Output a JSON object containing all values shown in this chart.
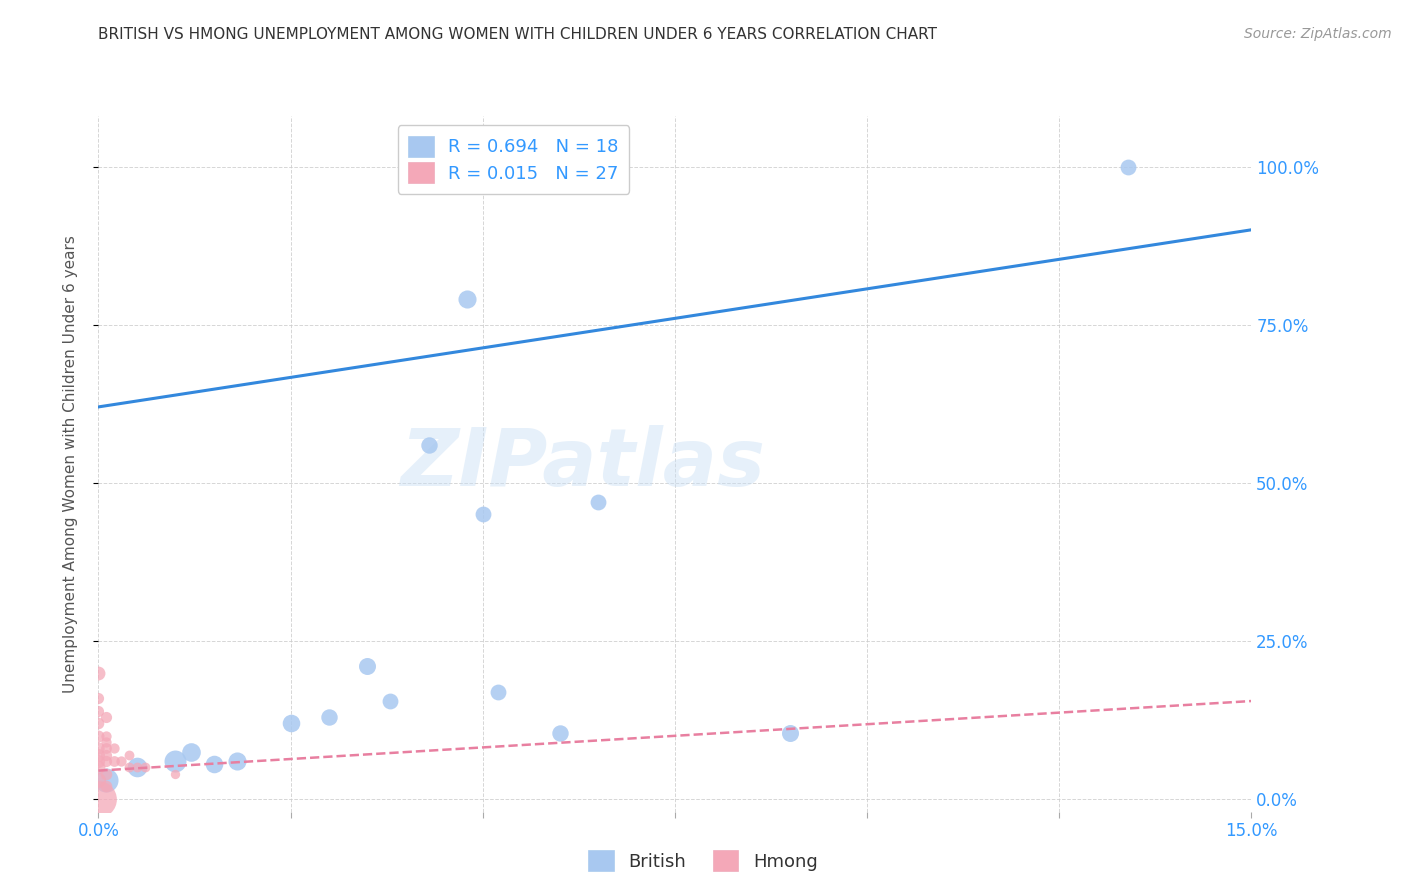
{
  "title": "BRITISH VS HMONG UNEMPLOYMENT AMONG WOMEN WITH CHILDREN UNDER 6 YEARS CORRELATION CHART",
  "source": "Source: ZipAtlas.com",
  "ylabel": "Unemployment Among Women with Children Under 6 years",
  "xlim": [
    0,
    0.15
  ],
  "ylim": [
    -0.02,
    1.08
  ],
  "xticks": [
    0.0,
    0.025,
    0.05,
    0.075,
    0.1,
    0.125,
    0.15
  ],
  "xticklabels": [
    "0.0%",
    "",
    "",
    "",
    "",
    "",
    "15.0%"
  ],
  "yticks": [
    0.0,
    0.25,
    0.5,
    0.75,
    1.0
  ],
  "yticklabels": [
    "0.0%",
    "25.0%",
    "50.0%",
    "75.0%",
    "100.0%"
  ],
  "legend_R_british": "R = 0.694",
  "legend_N_british": "N = 18",
  "legend_R_hmong": "R = 0.015",
  "legend_N_hmong": "N = 27",
  "british_color": "#a8c8f0",
  "hmong_color": "#f4a8b8",
  "trendline_british_color": "#3388dd",
  "trendline_hmong_color": "#e87fa0",
  "tick_color": "#3399ff",
  "axis_label_color": "#555555",
  "watermark_text": "ZIPatlas",
  "british_points": [
    [
      0.001,
      0.03,
      300
    ],
    [
      0.005,
      0.05,
      200
    ],
    [
      0.01,
      0.06,
      250
    ],
    [
      0.012,
      0.075,
      180
    ],
    [
      0.015,
      0.055,
      160
    ],
    [
      0.018,
      0.06,
      170
    ],
    [
      0.025,
      0.12,
      160
    ],
    [
      0.03,
      0.13,
      140
    ],
    [
      0.035,
      0.21,
      150
    ],
    [
      0.038,
      0.155,
      130
    ],
    [
      0.043,
      0.56,
      140
    ],
    [
      0.048,
      0.79,
      170
    ],
    [
      0.05,
      0.45,
      130
    ],
    [
      0.052,
      0.17,
      130
    ],
    [
      0.06,
      0.105,
      140
    ],
    [
      0.065,
      0.47,
      130
    ],
    [
      0.09,
      0.105,
      150
    ],
    [
      0.134,
      1.0,
      130
    ]
  ],
  "hmong_points": [
    [
      0.0,
      0.0,
      700
    ],
    [
      0.0,
      0.03,
      120
    ],
    [
      0.0,
      0.05,
      100
    ],
    [
      0.0,
      0.06,
      90
    ],
    [
      0.0,
      0.07,
      90
    ],
    [
      0.0,
      0.08,
      80
    ],
    [
      0.0,
      0.1,
      75
    ],
    [
      0.0,
      0.12,
      70
    ],
    [
      0.0,
      0.14,
      65
    ],
    [
      0.0,
      0.16,
      65
    ],
    [
      0.0,
      0.2,
      100
    ],
    [
      0.001,
      0.02,
      70
    ],
    [
      0.001,
      0.04,
      70
    ],
    [
      0.001,
      0.06,
      65
    ],
    [
      0.001,
      0.07,
      65
    ],
    [
      0.001,
      0.08,
      60
    ],
    [
      0.001,
      0.09,
      55
    ],
    [
      0.001,
      0.1,
      55
    ],
    [
      0.001,
      0.13,
      65
    ],
    [
      0.002,
      0.06,
      60
    ],
    [
      0.002,
      0.08,
      55
    ],
    [
      0.003,
      0.06,
      55
    ],
    [
      0.004,
      0.05,
      50
    ],
    [
      0.004,
      0.07,
      50
    ],
    [
      0.005,
      0.05,
      50
    ],
    [
      0.006,
      0.05,
      50
    ],
    [
      0.01,
      0.04,
      45
    ]
  ],
  "british_trendline": [
    [
      0.0,
      0.62
    ],
    [
      0.15,
      0.9
    ]
  ],
  "hmong_trendline": [
    [
      0.0,
      0.045
    ],
    [
      0.15,
      0.155
    ]
  ]
}
